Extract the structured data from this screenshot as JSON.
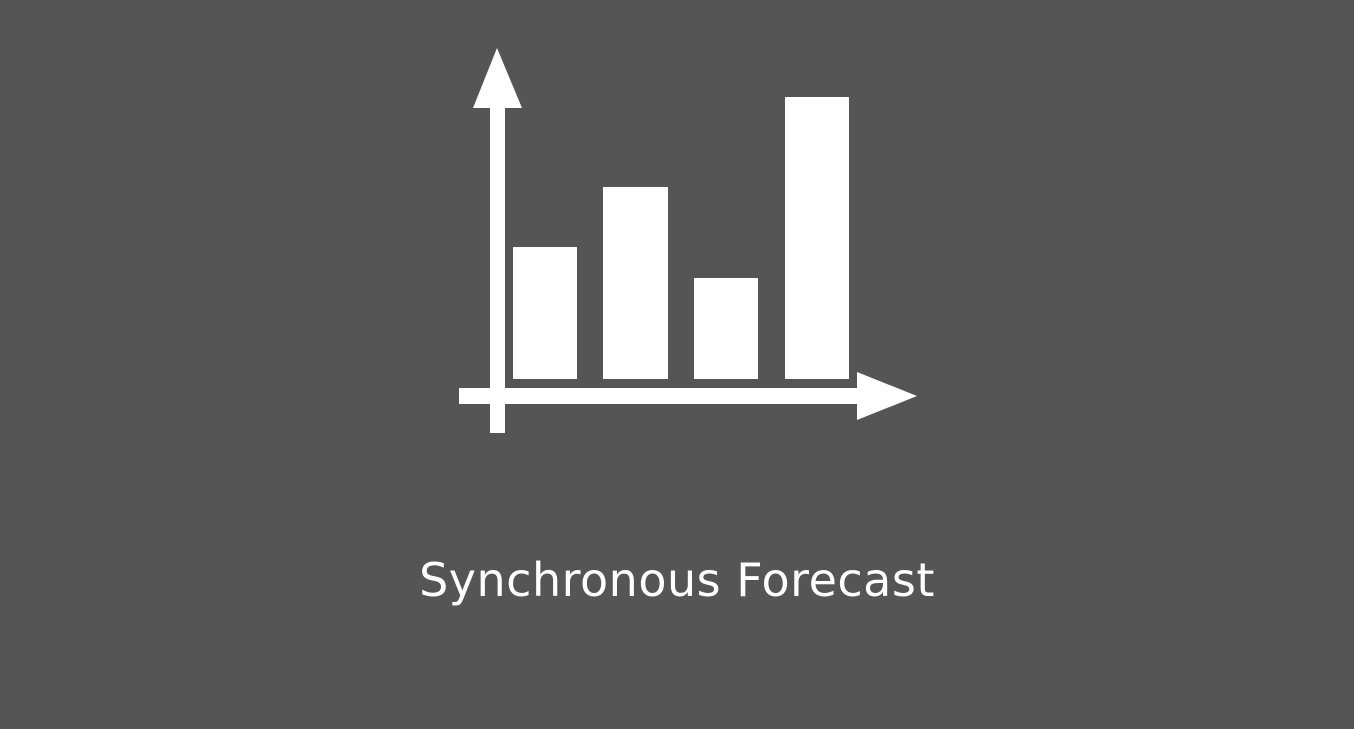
{
  "tile": {
    "title": "Synchronous Forecast",
    "background_color": "#555555",
    "foreground_color": "#ffffff",
    "icon": "bar-chart-icon"
  }
}
